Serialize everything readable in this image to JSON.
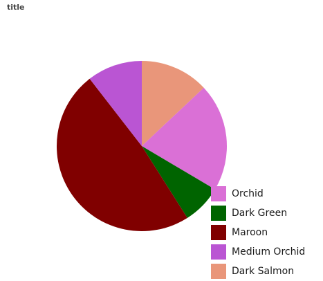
{
  "chart_data": {
    "type": "pie",
    "title": "title",
    "legend_position": "bottom-right",
    "start_angle_deg": 0,
    "direction": "clockwise",
    "categories": [
      "Orchid",
      "Dark Green",
      "Maroon",
      "Medium Orchid",
      "Dark Salmon"
    ],
    "values": [
      20.5,
      7.5,
      48.5,
      10.5,
      13.0
    ],
    "colors": [
      "#DA70D6",
      "#006400",
      "#800000",
      "#BA55D3",
      "#E9967A"
    ],
    "slice_order": [
      "Dark Salmon",
      "Orchid",
      "Dark Green",
      "Maroon",
      "Medium Orchid"
    ]
  }
}
